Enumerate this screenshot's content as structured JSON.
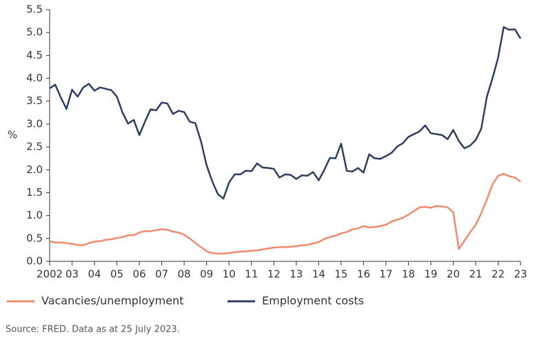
{
  "chart_data": {
    "type": "line",
    "y_label": "%",
    "source": "Source: FRED. Data as at 25 July 2023.",
    "x": [
      2002,
      2002.25,
      2002.5,
      2002.75,
      2003,
      2003.25,
      2003.5,
      2003.75,
      2004,
      2004.25,
      2004.5,
      2004.75,
      2005,
      2005.25,
      2005.5,
      2005.75,
      2006,
      2006.25,
      2006.5,
      2006.75,
      2007,
      2007.25,
      2007.5,
      2007.75,
      2008,
      2008.25,
      2008.5,
      2008.75,
      2009,
      2009.25,
      2009.5,
      2009.75,
      2010,
      2010.25,
      2010.5,
      2010.75,
      2011,
      2011.25,
      2011.5,
      2011.75,
      2012,
      2012.25,
      2012.5,
      2012.75,
      2013,
      2013.25,
      2013.5,
      2013.75,
      2014,
      2014.25,
      2014.5,
      2014.75,
      2015,
      2015.25,
      2015.5,
      2015.75,
      2016,
      2016.25,
      2016.5,
      2016.75,
      2017,
      2017.25,
      2017.5,
      2017.75,
      2018,
      2018.25,
      2018.5,
      2018.75,
      2019,
      2019.25,
      2019.5,
      2019.75,
      2020,
      2020.25,
      2020.5,
      2020.75,
      2021,
      2021.25,
      2021.5,
      2021.75,
      2022,
      2022.25,
      2022.5,
      2022.75,
      2023
    ],
    "series": [
      {
        "name": "Vacancies/unemployment",
        "color": "#f0886a",
        "values": [
          0.44,
          0.41,
          0.41,
          0.4,
          0.38,
          0.36,
          0.35,
          0.4,
          0.43,
          0.44,
          0.47,
          0.48,
          0.51,
          0.53,
          0.57,
          0.57,
          0.63,
          0.66,
          0.66,
          0.68,
          0.7,
          0.69,
          0.65,
          0.63,
          0.58,
          0.5,
          0.4,
          0.31,
          0.22,
          0.18,
          0.17,
          0.17,
          0.18,
          0.2,
          0.21,
          0.22,
          0.23,
          0.24,
          0.26,
          0.28,
          0.3,
          0.31,
          0.31,
          0.32,
          0.33,
          0.35,
          0.36,
          0.39,
          0.42,
          0.49,
          0.53,
          0.56,
          0.61,
          0.64,
          0.7,
          0.72,
          0.77,
          0.74,
          0.75,
          0.77,
          0.8,
          0.87,
          0.91,
          0.95,
          1.02,
          1.1,
          1.18,
          1.19,
          1.17,
          1.21,
          1.2,
          1.18,
          1.07,
          0.27,
          0.45,
          0.63,
          0.8,
          1.05,
          1.35,
          1.68,
          1.87,
          1.91,
          1.86,
          1.83,
          1.74
        ]
      },
      {
        "name": "Employment costs",
        "color": "#2b3e5f",
        "values": [
          3.78,
          3.86,
          3.58,
          3.33,
          3.75,
          3.6,
          3.8,
          3.88,
          3.73,
          3.8,
          3.77,
          3.74,
          3.6,
          3.25,
          3.01,
          3.09,
          2.76,
          3.05,
          3.32,
          3.3,
          3.47,
          3.45,
          3.22,
          3.29,
          3.26,
          3.05,
          3.02,
          2.62,
          2.1,
          1.75,
          1.47,
          1.37,
          1.72,
          1.9,
          1.9,
          1.98,
          1.97,
          2.14,
          2.05,
          2.04,
          2.02,
          1.83,
          1.9,
          1.89,
          1.8,
          1.88,
          1.87,
          1.95,
          1.77,
          2.0,
          2.26,
          2.25,
          2.57,
          1.98,
          1.96,
          2.04,
          1.94,
          2.34,
          2.25,
          2.24,
          2.3,
          2.37,
          2.51,
          2.58,
          2.72,
          2.78,
          2.84,
          2.97,
          2.8,
          2.78,
          2.76,
          2.67,
          2.87,
          2.63,
          2.47,
          2.53,
          2.65,
          2.9,
          3.6,
          4.0,
          4.45,
          5.12,
          5.06,
          5.07,
          4.87
        ]
      }
    ],
    "xlim": [
      2002,
      2023
    ],
    "xticks": [
      2002,
      {
        "value": 2003,
        "label": "03"
      },
      {
        "value": 2004,
        "label": "04"
      },
      {
        "value": 2005,
        "label": "05"
      },
      {
        "value": 2006,
        "label": "06"
      },
      {
        "value": 2007,
        "label": "07"
      },
      {
        "value": 2008,
        "label": "08"
      },
      {
        "value": 2009,
        "label": "09"
      },
      {
        "value": 2010,
        "label": "10"
      },
      {
        "value": 2011,
        "label": "11"
      },
      {
        "value": 2012,
        "label": "12"
      },
      {
        "value": 2013,
        "label": "13"
      },
      {
        "value": 2014,
        "label": "14"
      },
      {
        "value": 2015,
        "label": "15"
      },
      {
        "value": 2016,
        "label": "16"
      },
      {
        "value": 2017,
        "label": "17"
      },
      {
        "value": 2018,
        "label": "18"
      },
      {
        "value": 2019,
        "label": "19"
      },
      {
        "value": 2020,
        "label": "20"
      },
      {
        "value": 2021,
        "label": "21"
      },
      {
        "value": 2022,
        "label": "22"
      },
      {
        "value": 2023,
        "label": "23"
      }
    ],
    "ylim": [
      0,
      5.5
    ],
    "yticks": [
      {
        "value": 0,
        "label": "0.0"
      },
      0.5,
      {
        "value": 1,
        "label": "1.0"
      },
      1.5,
      {
        "value": 2,
        "label": "2.0"
      },
      2.5,
      {
        "value": 3,
        "label": "3.0"
      },
      3.5,
      {
        "value": 4,
        "label": "4.0"
      },
      4.5,
      {
        "value": 5,
        "label": "5.0"
      },
      5.5
    ],
    "grid": false,
    "legend": "bottom"
  }
}
